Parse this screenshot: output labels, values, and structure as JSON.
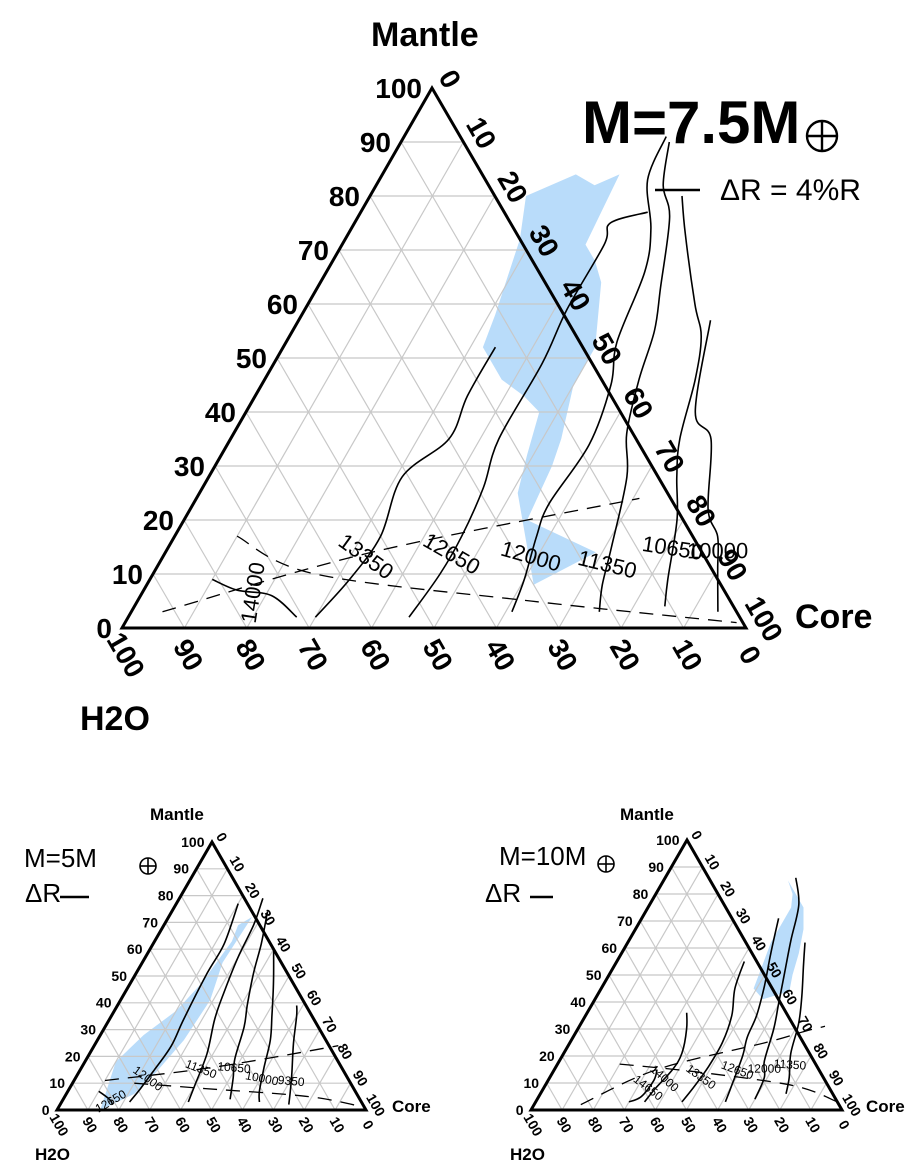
{
  "chart_data": [
    {
      "type": "ternary-contour",
      "title": "M=7.5M",
      "planet_symbol": "⊕",
      "legend_label": "ΔR = 4%R",
      "vertices": {
        "top": "Mantle",
        "right": "Core",
        "left": "H2O"
      },
      "ticks": [
        "0",
        "10",
        "20",
        "30",
        "40",
        "50",
        "60",
        "70",
        "80",
        "90",
        "100"
      ],
      "contours": [
        {
          "label": "14000",
          "points": [
            [
              10,
              9
            ],
            [
              15,
              7
            ],
            [
              21,
              6
            ],
            [
              27,
              2
            ]
          ]
        },
        {
          "label": "13350",
          "points": [
            [
              30,
              2
            ],
            [
              32,
              9
            ],
            [
              33,
              17
            ],
            [
              31,
              28
            ],
            [
              35,
              35
            ],
            [
              34,
              43
            ],
            [
              34,
              52
            ]
          ]
        },
        {
          "label": "12650",
          "points": [
            [
              45,
              2
            ],
            [
              46,
              10
            ],
            [
              46,
              17
            ],
            [
              45,
              26
            ],
            [
              43,
              35
            ],
            [
              43,
              49
            ],
            [
              42,
              59
            ],
            [
              42,
              71
            ],
            [
              41,
              75
            ],
            [
              46,
              77
            ]
          ]
        },
        {
          "label": "12000",
          "points": [
            [
              61,
              3
            ],
            [
              60,
              9
            ],
            [
              58,
              17
            ],
            [
              57,
              23
            ],
            [
              58,
              34
            ],
            [
              56,
              45
            ],
            [
              53,
              53
            ],
            [
              51,
              66
            ],
            [
              48,
              74
            ],
            [
              43,
              83
            ],
            [
              42,
              91
            ]
          ]
        },
        {
          "label": "11350",
          "points": [
            [
              75,
              3
            ],
            [
              73,
              8
            ],
            [
              71,
              15
            ],
            [
              67,
              28
            ],
            [
              63,
              36
            ],
            [
              60,
              46
            ],
            [
              58,
              55
            ],
            [
              55,
              63
            ],
            [
              50,
              76
            ],
            [
              46,
              82
            ],
            [
              43,
              90
            ]
          ]
        },
        {
          "label": "10650",
          "points": [
            [
              85,
              4
            ],
            [
              83,
              9
            ],
            [
              79,
              20
            ],
            [
              75,
              28
            ],
            [
              72,
              35
            ],
            [
              69,
              46
            ],
            [
              66,
              54
            ],
            [
              62,
              60
            ],
            [
              54,
              73
            ],
            [
              50,
              80
            ]
          ]
        },
        {
          "label": "10000",
          "points": [
            [
              94,
              3
            ],
            [
              90,
              11
            ],
            [
              87,
              17
            ],
            [
              83,
              22
            ],
            [
              77,
              35
            ],
            [
              72,
              40
            ],
            [
              66,
              57
            ]
          ]
        }
      ],
      "dashed_lines": [
        {
          "points": [
            [
              5,
              3
            ],
            [
              33,
              14
            ],
            [
              71,
              24
            ]
          ]
        },
        {
          "points": [
            [
              10,
              17
            ],
            [
              26,
              10
            ],
            [
              63,
              5
            ],
            [
              98,
              1
            ]
          ]
        }
      ],
      "band": [
        [
          62,
          8
        ],
        [
          51,
          25
        ],
        [
          49,
          32
        ],
        [
          47,
          40
        ],
        [
          43,
          43
        ],
        [
          38,
          46
        ],
        [
          32,
          52
        ],
        [
          31,
          58
        ],
        [
          28,
          72
        ],
        [
          25,
          80
        ],
        [
          31,
          84
        ],
        [
          35,
          82
        ],
        [
          38,
          84
        ],
        [
          39,
          71
        ],
        [
          42,
          68
        ],
        [
          45,
          64
        ],
        [
          50,
          52
        ],
        [
          50,
          45
        ],
        [
          53,
          35
        ],
        [
          54,
          30
        ],
        [
          55,
          20
        ],
        [
          69,
          14
        ]
      ]
    },
    {
      "type": "ternary-contour",
      "title": "M=5M",
      "planet_symbol": "⊕",
      "legend_label": "ΔR",
      "vertices": {
        "top": "Mantle",
        "right": "Core",
        "left": "H2O"
      },
      "ticks": [
        "0",
        "10",
        "20",
        "30",
        "40",
        "50",
        "60",
        "70",
        "80",
        "90",
        "100"
      ],
      "contours": [
        {
          "label": "12650",
          "points": [
            [
              10,
              7
            ],
            [
              15,
              4
            ],
            [
              17,
              2
            ]
          ]
        },
        {
          "label": "12000",
          "points": [
            [
              22,
              3
            ],
            [
              23,
              8
            ],
            [
              24,
              15
            ],
            [
              25,
              24
            ],
            [
              24,
              34
            ],
            [
              23,
              51
            ],
            [
              23,
              62
            ],
            [
              20,
              77
            ]
          ]
        },
        {
          "label": "11350",
          "points": [
            [
              41,
              3
            ],
            [
              40,
              9
            ],
            [
              38,
              21
            ],
            [
              34,
              34
            ],
            [
              32,
              44
            ],
            [
              30,
              57
            ],
            [
              29,
              69
            ],
            [
              27,
              79
            ]
          ]
        },
        {
          "label": "10650",
          "points": [
            [
              54,
              4
            ],
            [
              51,
              12
            ],
            [
              48,
              19
            ],
            [
              45,
              31
            ],
            [
              42,
              39
            ],
            [
              38,
              51
            ],
            [
              35,
              62
            ],
            [
              31,
              74
            ]
          ]
        },
        {
          "label": "10000",
          "points": [
            [
              64,
              3
            ],
            [
              62,
              7
            ],
            [
              59,
              16
            ],
            [
              56,
              26
            ],
            [
              52,
              35
            ],
            [
              46,
              48
            ],
            [
              40,
              60
            ]
          ]
        },
        {
          "label": "9350",
          "points": [
            [
              74,
              2
            ],
            [
              72,
              7
            ],
            [
              69,
              14
            ],
            [
              64,
              25
            ],
            [
              60,
              35
            ],
            [
              58,
              39
            ]
          ]
        }
      ],
      "dashed_lines": [
        {
          "points": [
            [
              10,
              11
            ],
            [
              43,
              16
            ],
            [
              79,
              24
            ]
          ]
        },
        {
          "points": [
            [
              20,
              10
            ],
            [
              44,
              8
            ],
            [
              79,
              5
            ],
            [
              99,
              1
            ]
          ]
        }
      ],
      "band": [
        [
          14,
          0
        ],
        [
          12,
          9
        ],
        [
          10,
          18
        ],
        [
          14,
          28
        ],
        [
          20,
          37
        ],
        [
          23,
          47
        ],
        [
          25,
          63
        ],
        [
          24,
          69
        ],
        [
          27,
          72
        ],
        [
          26,
          55
        ],
        [
          29,
          41
        ],
        [
          28,
          26
        ],
        [
          25,
          14
        ],
        [
          22,
          6
        ]
      ]
    },
    {
      "type": "ternary-contour",
      "title": "M=10M",
      "planet_symbol": "⊕",
      "legend_label": "ΔR",
      "vertices": {
        "top": "Mantle",
        "right": "Core",
        "left": "H2O"
      },
      "ticks": [
        "0",
        "10",
        "20",
        "30",
        "40",
        "50",
        "60",
        "70",
        "80",
        "90",
        "100"
      ],
      "contours": [
        {
          "label": "14650",
          "points": [
            [
              30,
              3
            ],
            [
              33,
              5
            ],
            [
              34,
              11
            ],
            [
              33,
              15
            ]
          ]
        },
        {
          "label": "14000",
          "points": [
            [
              35,
              3
            ],
            [
              36,
              8
            ],
            [
              38,
              15
            ],
            [
              38,
              21
            ],
            [
              35,
              30
            ],
            [
              32,
              36
            ]
          ]
        },
        {
          "label": "13350",
          "points": [
            [
              47,
              3
            ],
            [
              48,
              8
            ],
            [
              49,
              16
            ],
            [
              49,
              25
            ],
            [
              47,
              35
            ],
            [
              43,
              45
            ],
            [
              41,
              55
            ]
          ]
        },
        {
          "label": "12650",
          "points": [
            [
              61,
              3
            ],
            [
              60,
              9
            ],
            [
              58,
              20
            ],
            [
              56,
              27
            ],
            [
              55,
              35
            ],
            [
              52,
              46
            ],
            [
              48,
              58
            ],
            [
              44,
              71
            ]
          ]
        },
        {
          "label": "12000",
          "points": [
            [
              70,
              4
            ],
            [
              69,
              12
            ],
            [
              66,
              18
            ],
            [
              63,
              30
            ],
            [
              60,
              39
            ],
            [
              56,
              51
            ],
            [
              52,
              63
            ],
            [
              48,
              76
            ],
            [
              42,
              86
            ]
          ]
        },
        {
          "label": "11350",
          "points": [
            [
              79,
              6
            ],
            [
              77,
              12
            ],
            [
              73,
              21
            ],
            [
              70,
              32
            ],
            [
              66,
              42
            ],
            [
              61,
              53
            ],
            [
              57,
              62
            ]
          ]
        }
      ],
      "dashed_lines": [
        {
          "points": [
            [
              15,
              2
            ],
            [
              33,
              15
            ],
            [
              63,
              25
            ],
            [
              73,
              29
            ],
            [
              79,
              31
            ]
          ]
        },
        {
          "points": [
            [
              20,
              17
            ],
            [
              47,
              14
            ],
            [
              80,
              9
            ],
            [
              97,
              3
            ]
          ]
        }
      ],
      "band": [
        [
          61,
          44
        ],
        [
          59,
          50
        ],
        [
          57,
          58
        ],
        [
          54,
          67
        ],
        [
          50,
          75
        ],
        [
          44,
          81
        ],
        [
          40,
          85
        ],
        [
          44,
          80
        ],
        [
          46,
          75
        ],
        [
          46,
          70
        ],
        [
          46,
          62
        ],
        [
          48,
          51
        ],
        [
          49,
          45
        ],
        [
          54,
          41
        ]
      ]
    }
  ]
}
